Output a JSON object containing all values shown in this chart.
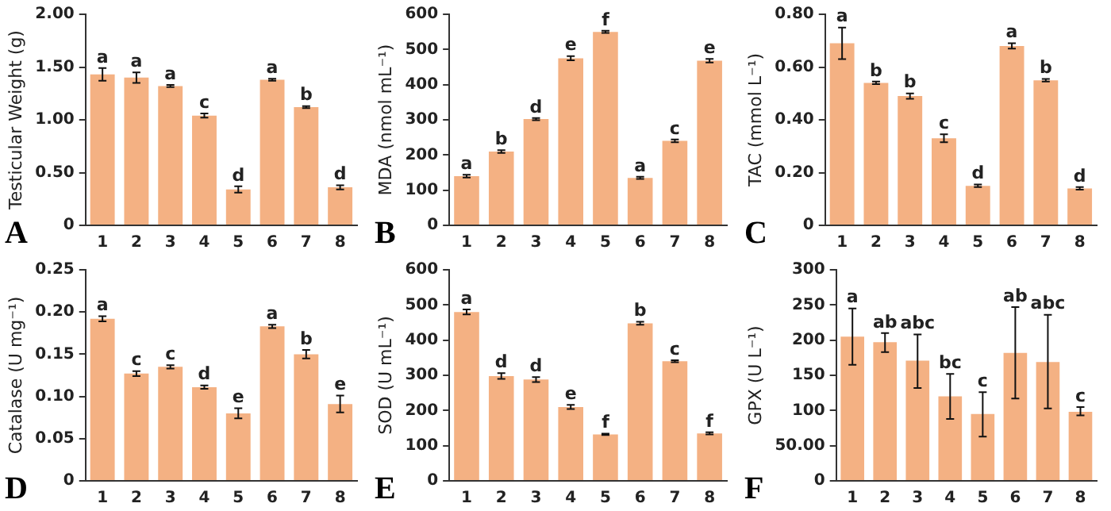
{
  "chart_data": [
    {
      "type": "bar",
      "ylabel": "Testicular Weight (g)",
      "categories": [
        "1",
        "2",
        "3",
        "4",
        "5",
        "6",
        "7",
        "8"
      ],
      "color": "#f4b183",
      "values": [
        1.43,
        1.4,
        1.32,
        1.04,
        0.34,
        1.38,
        1.12,
        0.36
      ],
      "errors": [
        0.06,
        0.05,
        0.01,
        0.02,
        0.03,
        0.01,
        0.01,
        0.02
      ],
      "value_labels": [
        "a",
        "a",
        "a",
        "c",
        "d",
        "a",
        "b",
        "d"
      ],
      "ylim": [
        0,
        2
      ],
      "yticks": [
        0,
        {
          "value": 0.5,
          "label": "0.50"
        },
        {
          "value": 1,
          "label": "1.00"
        },
        {
          "value": 1.5,
          "label": "1.50"
        },
        {
          "value": 2,
          "label": "2.00"
        }
      ],
      "grid": false,
      "annotations": [
        "A"
      ]
    },
    {
      "type": "bar",
      "ylabel": "MDA (nmol mL⁻¹)",
      "categories": [
        "1",
        "2",
        "3",
        "4",
        "5",
        "6",
        "7",
        "8"
      ],
      "color": "#f4b183",
      "values": [
        140,
        210,
        302,
        475,
        550,
        135,
        240,
        468
      ],
      "errors": [
        4,
        4,
        3,
        6,
        3,
        3,
        4,
        5
      ],
      "value_labels": [
        "a",
        "b",
        "d",
        "e",
        "f",
        "a",
        "c",
        "e"
      ],
      "ylim": [
        0,
        600
      ],
      "yticks": [
        0,
        100,
        200,
        300,
        400,
        500,
        600
      ],
      "grid": false,
      "annotations": [
        "B"
      ]
    },
    {
      "type": "bar",
      "ylabel": "TAC (mmol L⁻¹)",
      "categories": [
        "1",
        "2",
        "3",
        "4",
        "5",
        "6",
        "7",
        "8"
      ],
      "color": "#f4b183",
      "values": [
        0.69,
        0.54,
        0.49,
        0.33,
        0.15,
        0.68,
        0.55,
        0.14
      ],
      "errors": [
        0.06,
        0.005,
        0.01,
        0.015,
        0.005,
        0.01,
        0.005,
        0.005
      ],
      "value_labels": [
        "a",
        "b",
        "b",
        "c",
        "d",
        "a",
        "b",
        "d"
      ],
      "ylim": [
        0,
        0.8
      ],
      "yticks": [
        0,
        {
          "value": 0.2,
          "label": "0.20"
        },
        {
          "value": 0.4,
          "label": "0.40"
        },
        {
          "value": 0.6,
          "label": "0.60"
        },
        {
          "value": 0.8,
          "label": "0.80"
        }
      ],
      "grid": false,
      "annotations": [
        "C"
      ]
    },
    {
      "type": "bar",
      "ylabel": "Catalase (U mg⁻¹)",
      "categories": [
        "1",
        "2",
        "3",
        "4",
        "5",
        "6",
        "7",
        "8"
      ],
      "color": "#f4b183",
      "values": [
        0.192,
        0.127,
        0.135,
        0.111,
        0.08,
        0.183,
        0.15,
        0.091
      ],
      "errors": [
        0.003,
        0.003,
        0.002,
        0.002,
        0.006,
        0.002,
        0.005,
        0.01
      ],
      "value_labels": [
        "a",
        "c",
        "c",
        "d",
        "e",
        "a",
        "b",
        "e"
      ],
      "ylim": [
        0,
        0.25
      ],
      "yticks": [
        0,
        0.05,
        {
          "value": 0.1,
          "label": "0.10"
        },
        0.15,
        {
          "value": 0.2,
          "label": "0.20"
        },
        0.25
      ],
      "grid": false,
      "annotations": [
        "D"
      ]
    },
    {
      "type": "bar",
      "ylabel": "SOD (U mL⁻¹)",
      "categories": [
        "1",
        "2",
        "3",
        "4",
        "5",
        "6",
        "7",
        "8"
      ],
      "color": "#f4b183",
      "values": [
        480,
        298,
        288,
        210,
        132,
        448,
        340,
        135
      ],
      "errors": [
        7,
        8,
        7,
        6,
        2,
        4,
        3,
        3
      ],
      "value_labels": [
        "a",
        "d",
        "d",
        "e",
        "f",
        "b",
        "c",
        "f"
      ],
      "ylim": [
        0,
        600
      ],
      "yticks": [
        0,
        100,
        200,
        300,
        400,
        500,
        600
      ],
      "grid": false,
      "annotations": [
        "E"
      ]
    },
    {
      "type": "bar",
      "ylabel": "GPX (U L⁻¹)",
      "categories": [
        "1",
        "2",
        "3",
        "4",
        "5",
        "6",
        "7",
        "8"
      ],
      "color": "#f4b183",
      "values": [
        205,
        197,
        171,
        120,
        95,
        182,
        169,
        98
      ],
      "errors": [
        [
          165,
          245
        ],
        [
          183,
          210
        ],
        [
          132,
          208
        ],
        [
          88,
          152
        ],
        [
          63,
          126
        ],
        [
          117,
          247
        ],
        [
          103,
          236
        ],
        [
          93,
          105
        ]
      ],
      "value_labels": [
        "a",
        "ab",
        "abc",
        "bc",
        "c",
        "ab",
        "abc",
        "c"
      ],
      "ylim": [
        0,
        300
      ],
      "yticks": [
        0,
        {
          "value": 50,
          "label": "50.00"
        },
        100,
        150,
        200,
        250,
        300
      ],
      "grid": false,
      "annotations": [
        "F"
      ]
    }
  ]
}
